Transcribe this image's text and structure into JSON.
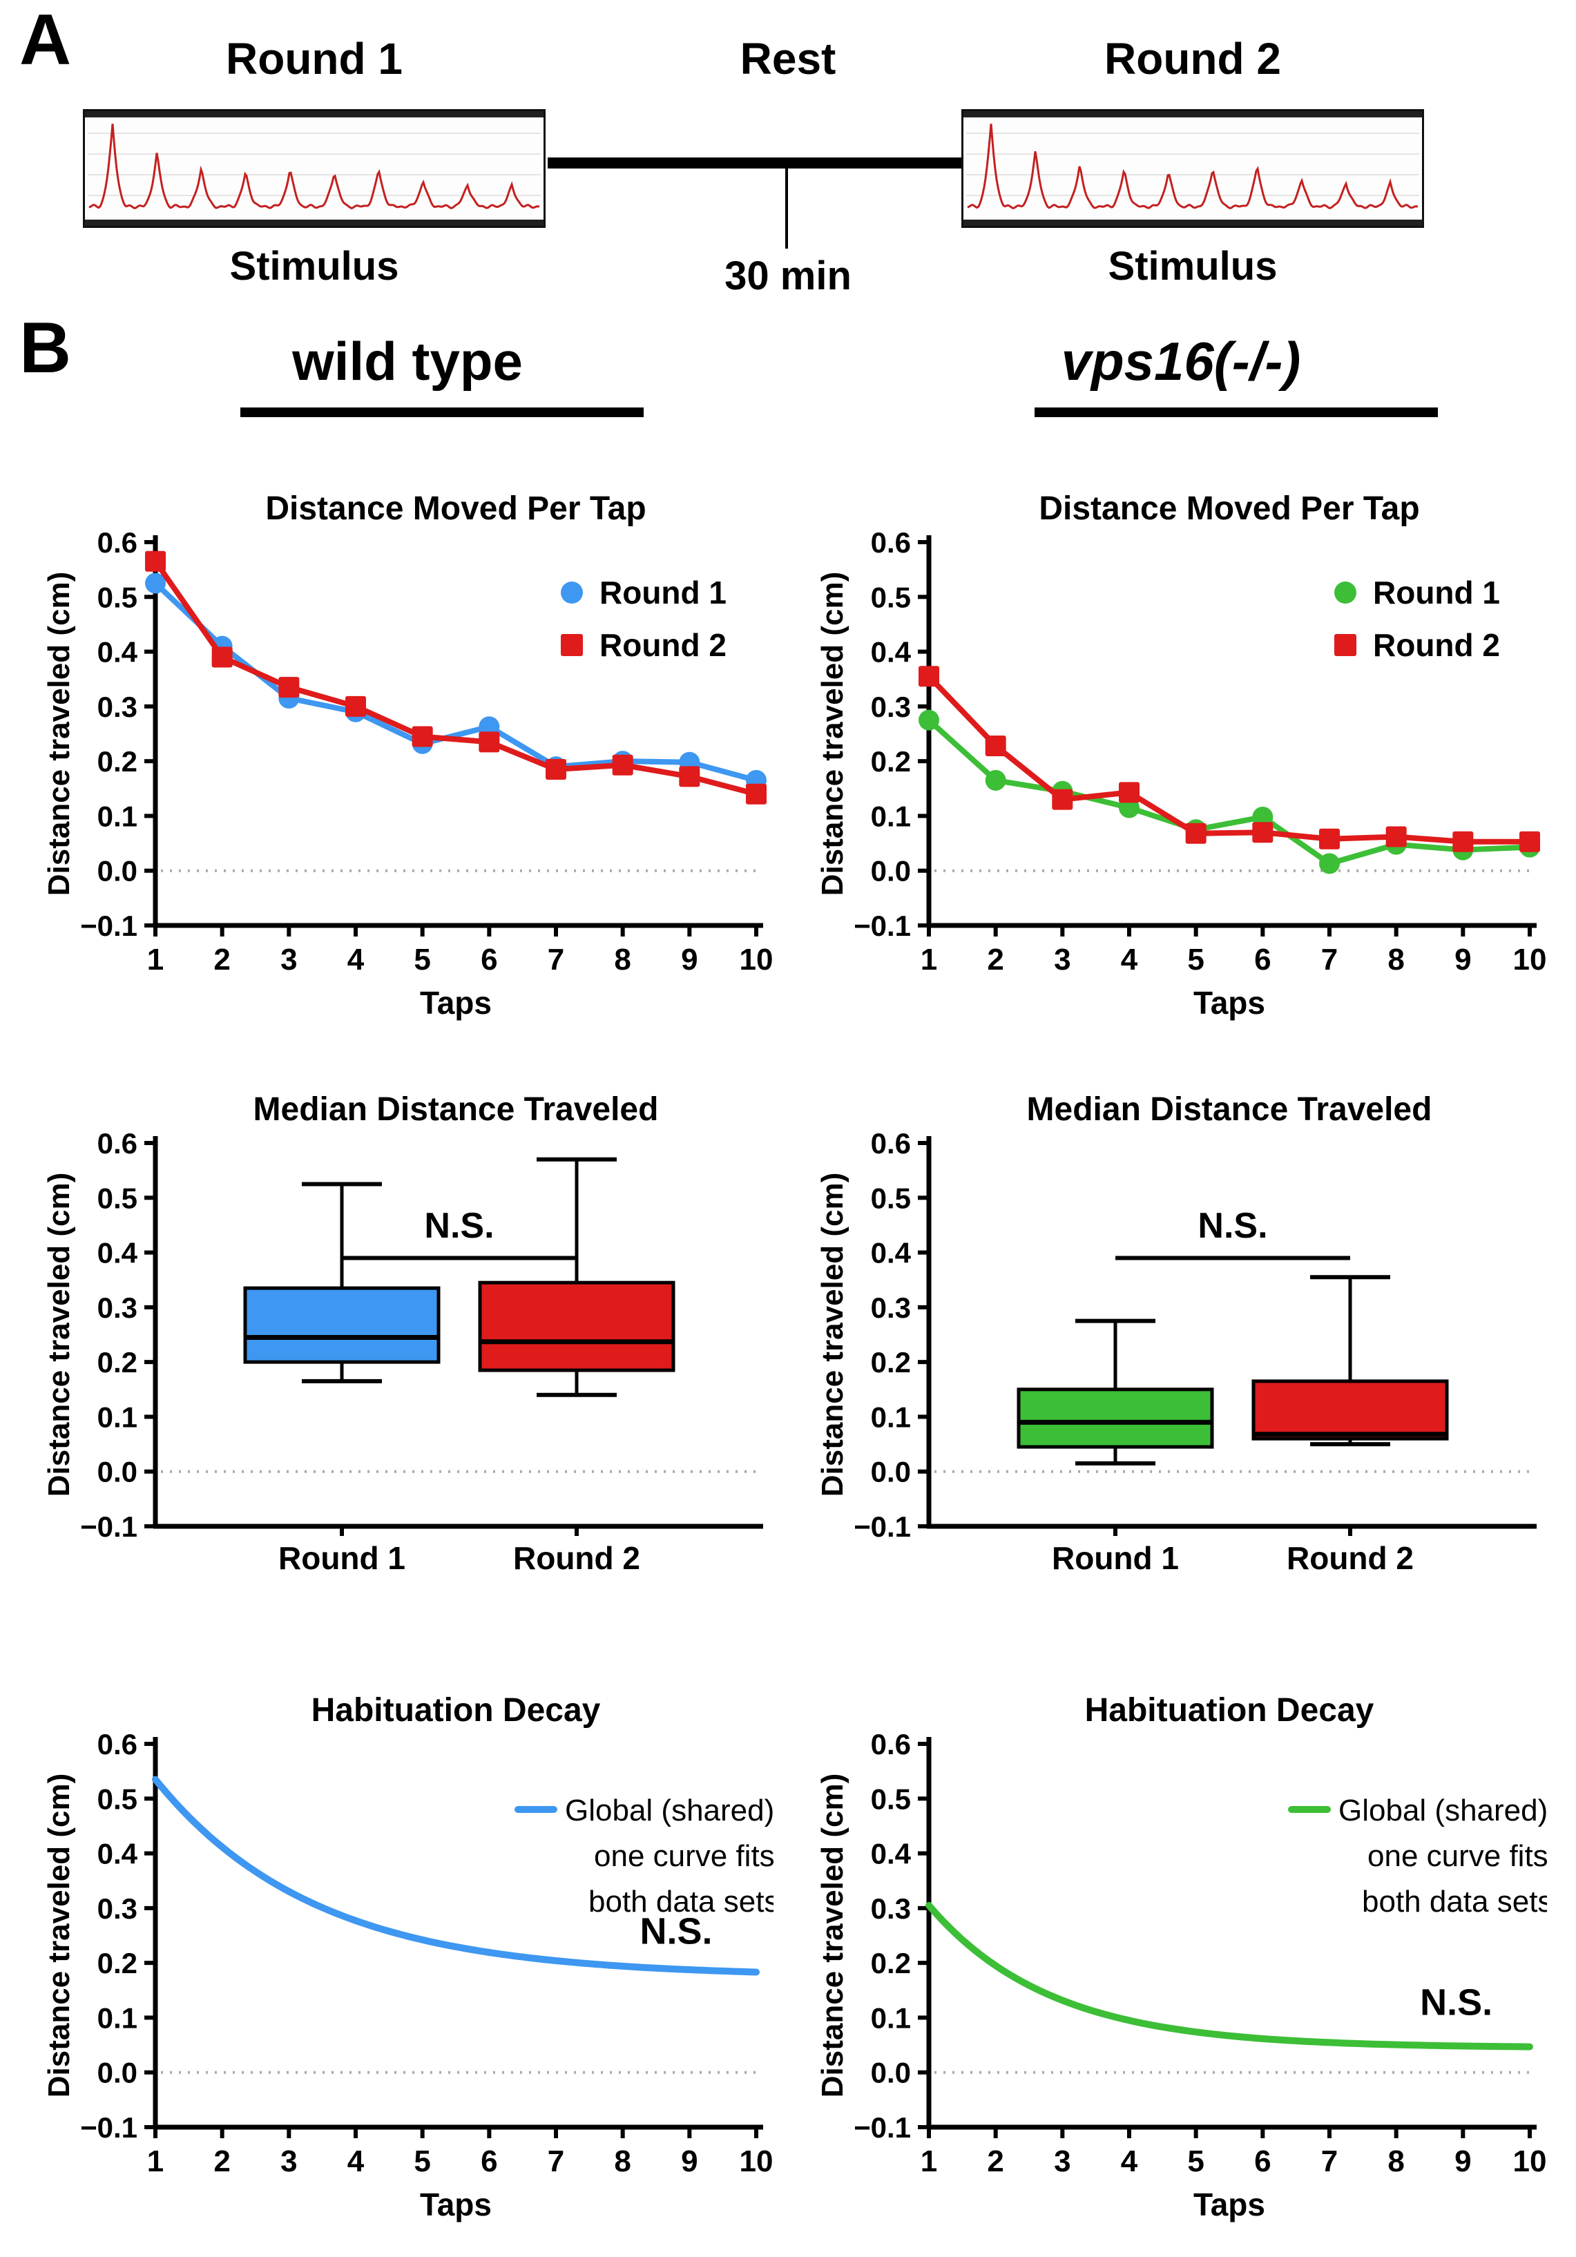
{
  "panelA": {
    "label": "A",
    "round1_header": "Round 1",
    "rest_header": "Rest",
    "round2_header": "Round 2",
    "rest_duration": "30 min",
    "stimulus_left": "Stimulus",
    "stimulus_right": "Stimulus",
    "trace_left_peaks": [
      1.0,
      0.66,
      0.48,
      0.42,
      0.46,
      0.43,
      0.46,
      0.32,
      0.28,
      0.26
    ],
    "trace_right_peaks": [
      1.0,
      0.68,
      0.52,
      0.45,
      0.43,
      0.48,
      0.5,
      0.34,
      0.3,
      0.29
    ]
  },
  "panelB": {
    "label": "B",
    "group_left": "wild type",
    "group_right": "vps16(-/-)"
  },
  "colors": {
    "blue": "#3E97F0",
    "red": "#DF1B1B",
    "green": "#3CBE36",
    "trace_red": "#C42020",
    "axis": "#000000",
    "zero_line": "#A9A9A9"
  },
  "chart_data": [
    {
      "id": "wt-distance-per-tap",
      "type": "line",
      "title": "Distance Moved Per Tap",
      "ylabel": "Distance traveled (cm)",
      "xlabel": "Taps",
      "ylim": [
        -0.1,
        0.6
      ],
      "yticks": [
        0.6,
        0.5,
        0.4,
        0.3,
        0.2,
        0.1,
        0.0,
        -0.1
      ],
      "x": [
        1,
        2,
        3,
        4,
        5,
        6,
        7,
        8,
        9,
        10
      ],
      "zero_line": true,
      "legend_position": "top-right",
      "series": [
        {
          "name": "Round 1",
          "color": "blue",
          "marker": "circle",
          "values": [
            0.525,
            0.41,
            0.315,
            0.29,
            0.232,
            0.263,
            0.19,
            0.2,
            0.198,
            0.165
          ]
        },
        {
          "name": "Round 2",
          "color": "red",
          "marker": "square",
          "values": [
            0.565,
            0.39,
            0.335,
            0.3,
            0.245,
            0.235,
            0.185,
            0.193,
            0.172,
            0.14
          ]
        }
      ]
    },
    {
      "id": "vps16-distance-per-tap",
      "type": "line",
      "title": "Distance Moved Per Tap",
      "ylabel": "Distance traveled (cm)",
      "xlabel": "Taps",
      "ylim": [
        -0.1,
        0.6
      ],
      "yticks": [
        0.6,
        0.5,
        0.4,
        0.3,
        0.2,
        0.1,
        0.0,
        -0.1
      ],
      "x": [
        1,
        2,
        3,
        4,
        5,
        6,
        7,
        8,
        9,
        10
      ],
      "zero_line": true,
      "legend_position": "top-right",
      "series": [
        {
          "name": "Round 1",
          "color": "green",
          "marker": "circle",
          "values": [
            0.275,
            0.165,
            0.145,
            0.115,
            0.075,
            0.098,
            0.013,
            0.048,
            0.038,
            0.043
          ]
        },
        {
          "name": "Round 2",
          "color": "red",
          "marker": "square",
          "values": [
            0.355,
            0.228,
            0.13,
            0.143,
            0.068,
            0.07,
            0.058,
            0.062,
            0.053,
            0.053
          ]
        }
      ]
    },
    {
      "id": "wt-median-distance",
      "type": "box",
      "title": "Median Distance Traveled",
      "ylabel": "Distance traveled (cm)",
      "ylim": [
        -0.1,
        0.6
      ],
      "yticks": [
        0.6,
        0.5,
        0.4,
        0.3,
        0.2,
        0.1,
        0.0,
        -0.1
      ],
      "zero_line": true,
      "categories": [
        "Round 1",
        "Round 2"
      ],
      "boxes": [
        {
          "name": "Round 1",
          "color": "blue",
          "min": 0.165,
          "q1": 0.2,
          "median": 0.245,
          "q3": 0.335,
          "max": 0.525
        },
        {
          "name": "Round 2",
          "color": "red",
          "min": 0.14,
          "q1": 0.185,
          "median": 0.237,
          "q3": 0.345,
          "max": 0.57
        }
      ],
      "annotation": {
        "text": "N.S.",
        "line_y": 0.39,
        "label_y": 0.44
      }
    },
    {
      "id": "vps16-median-distance",
      "type": "box",
      "title": "Median Distance Traveled",
      "ylabel": "Distance traveled (cm)",
      "ylim": [
        -0.1,
        0.6
      ],
      "yticks": [
        0.6,
        0.5,
        0.4,
        0.3,
        0.2,
        0.1,
        0.0,
        -0.1
      ],
      "zero_line": true,
      "categories": [
        "Round 1",
        "Round 2"
      ],
      "boxes": [
        {
          "name": "Round 1",
          "color": "green",
          "min": 0.015,
          "q1": 0.045,
          "median": 0.09,
          "q3": 0.15,
          "max": 0.275
        },
        {
          "name": "Round 2",
          "color": "red",
          "min": 0.05,
          "q1": 0.06,
          "median": 0.068,
          "q3": 0.165,
          "max": 0.355
        }
      ],
      "annotation": {
        "text": "N.S.",
        "line_y": 0.39,
        "label_y": 0.44
      }
    },
    {
      "id": "wt-habituation-decay",
      "type": "decay",
      "title": "Habituation Decay",
      "ylabel": "Distance traveled (cm)",
      "xlabel": "Taps",
      "ylim": [
        -0.1,
        0.6
      ],
      "yticks": [
        0.6,
        0.5,
        0.4,
        0.3,
        0.2,
        0.1,
        0.0,
        -0.1
      ],
      "x_range": [
        1,
        10
      ],
      "zero_line": true,
      "color": "blue",
      "fit": {
        "y0": 0.535,
        "plateau": 0.175,
        "k": 0.42
      },
      "legend": [
        "Global (shared)",
        "one curve fits",
        "both data sets"
      ],
      "annotation": {
        "text": "N.S.",
        "x": 8.8,
        "y": 0.235
      }
    },
    {
      "id": "vps16-habituation-decay",
      "type": "decay",
      "title": "Habituation Decay",
      "ylabel": "Distance traveled (cm)",
      "xlabel": "Taps",
      "ylim": [
        -0.1,
        0.6
      ],
      "yticks": [
        0.6,
        0.5,
        0.4,
        0.3,
        0.2,
        0.1,
        0.0,
        -0.1
      ],
      "x_range": [
        1,
        10
      ],
      "zero_line": true,
      "color": "green",
      "fit": {
        "y0": 0.305,
        "plateau": 0.045,
        "k": 0.55
      },
      "legend": [
        "Global (shared)",
        "one curve fits",
        "both data sets"
      ],
      "annotation": {
        "text": "N.S.",
        "x": 8.9,
        "y": 0.105
      }
    }
  ]
}
